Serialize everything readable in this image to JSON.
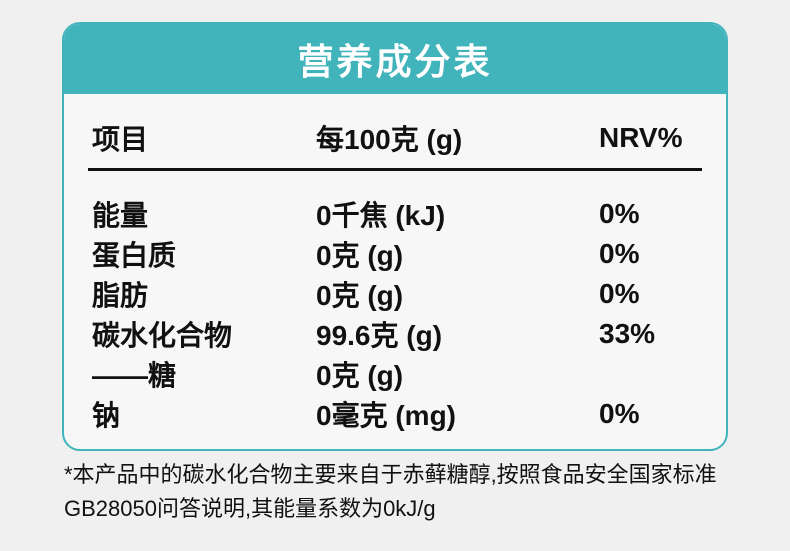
{
  "page": {
    "background": "#f0f0f1"
  },
  "card": {
    "title": "营养成分表",
    "accent_color": "#41b4bb",
    "body_background": "#f7f7f8"
  },
  "table": {
    "columns": [
      "项目",
      "每100克 (g)",
      "NRV%"
    ],
    "rows": [
      {
        "item": "能量",
        "per100g": "0千焦 (kJ)",
        "nrv": "0%"
      },
      {
        "item": "蛋白质",
        "per100g": "0克 (g)",
        "nrv": "0%"
      },
      {
        "item": "脂肪",
        "per100g": "0克 (g)",
        "nrv": "0%"
      },
      {
        "item": "碳水化合物",
        "per100g": "99.6克 (g)",
        "nrv": "33%"
      },
      {
        "item": "——糖",
        "per100g": "0克 (g)",
        "nrv": ""
      },
      {
        "item": "钠",
        "per100g": "0毫克 (mg)",
        "nrv": "0%"
      }
    ]
  },
  "footnote": "*本产品中的碳水化合物主要来自于赤藓糖醇,按照食品安全国家标准GB28050问答说明,其能量系数为0kJ/g"
}
